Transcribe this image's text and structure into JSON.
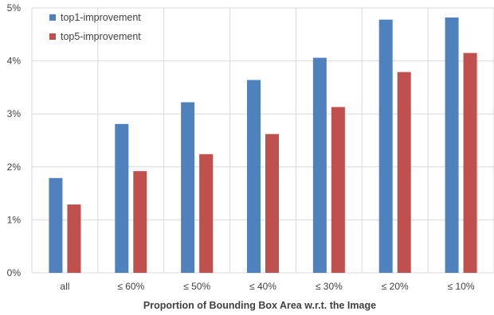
{
  "chart_data": {
    "type": "bar",
    "title": "",
    "xlabel": "Proportion of Bounding Box Area w.r.t. the Image",
    "ylabel": "",
    "categories": [
      "all",
      "≤ 60%",
      "≤ 50%",
      "≤ 40%",
      "≤ 30%",
      "≤ 20%",
      "≤ 10%"
    ],
    "series": [
      {
        "name": "top1-improvement",
        "color": "#4f81bd",
        "values": [
          1.79,
          2.81,
          3.22,
          3.64,
          4.06,
          4.78,
          4.82
        ]
      },
      {
        "name": "top5-improvement",
        "color": "#c0504d",
        "values": [
          1.29,
          1.92,
          2.24,
          2.62,
          3.13,
          3.79,
          4.15
        ]
      }
    ],
    "ylim": [
      0,
      5
    ],
    "yticks": [
      0,
      1,
      2,
      3,
      4,
      5
    ],
    "ytick_labels": [
      "0%",
      "1%",
      "2%",
      "3%",
      "4%",
      "5%"
    ],
    "grid": true,
    "legend_position": "top-left"
  }
}
